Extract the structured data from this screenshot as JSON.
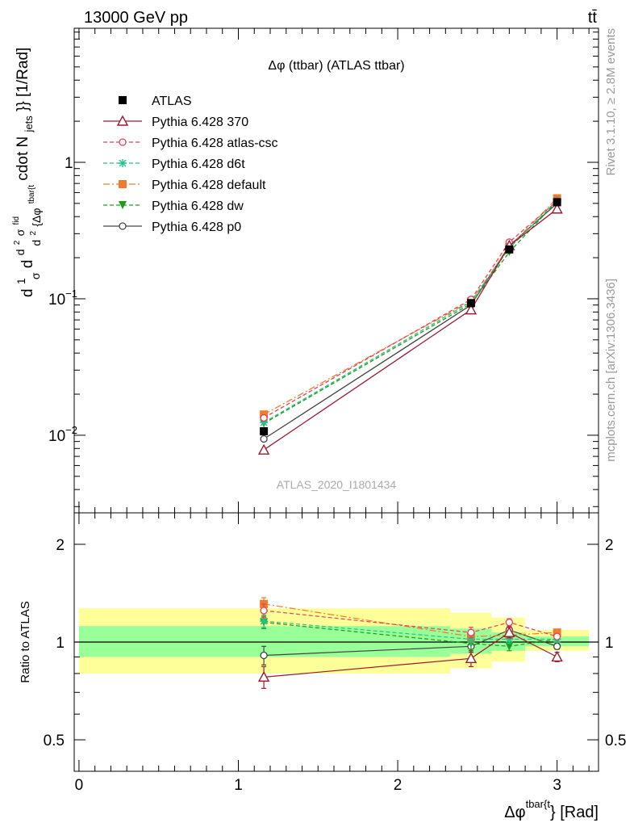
{
  "header": {
    "left": "13000 GeV pp",
    "right": "tt̄"
  },
  "side_text": {
    "rivet": "Rivet 3.1.10, ≥ 2.8M events",
    "mcplots": "mcplots.cern.ch [arXiv:1306.3436]"
  },
  "watermark": "ATLAS_2020_I1801434",
  "colors": {
    "ATLAS": "#000000",
    "p370": "#9b1b30",
    "atlascsc": "#e8405a",
    "d6t": "#22c488",
    "default": "#f07b2b",
    "dw": "#1a9e1a",
    "p0": "#444444",
    "band_yellow": "#ffff99",
    "band_green": "#99ff99"
  },
  "chart_data": [
    {
      "type": "line",
      "title": "Δφ (ttbar) (ATLAS ttbar)",
      "ylabel": "d1/σ d d²σ^fid / d² {Δφ^tbar{t}} cdot N_jets}} [1/Rad]",
      "ylabel_parts": {
        "prefix_d": "d",
        "num1": "1",
        "den1": "σ",
        "mid_d": "d",
        "num2_base": "d",
        "num2_sup1": "2",
        "num2_sigma": "σ",
        "num2_sup2": "fid",
        "den2_base": "d",
        "den2_sup": "2",
        "den2_body": "{Δφ",
        "den2_sup3": "tbar{t",
        "tail_a": "cdot N",
        "tail_sub": "jets",
        "tail_b": "}} [1/Rad]"
      },
      "xlim": [
        -0.03,
        3.26
      ],
      "ylim": [
        0.0027,
        9.6
      ],
      "log_y": true,
      "y_ticks": [
        {
          "value": 0.01,
          "base": "10",
          "exp": "−2"
        },
        {
          "value": 0.1,
          "base": "10",
          "exp": "−1"
        },
        {
          "value": 1,
          "base": "1",
          "exp": ""
        }
      ],
      "x": [
        1.16,
        2.46,
        2.7,
        3.0
      ],
      "series": [
        {
          "key": "ATLAS",
          "name": "ATLAS",
          "marker": "square-filled",
          "line": "none",
          "values": [
            0.0107,
            0.093,
            0.23,
            0.51
          ]
        },
        {
          "key": "p370",
          "name": "Pythia 6.428 370",
          "marker": "triangle-open",
          "line": "solid",
          "values": [
            0.0078,
            0.083,
            0.245,
            0.455
          ]
        },
        {
          "key": "atlascsc",
          "name": "Pythia 6.428 atlas-csc",
          "marker": "circle-open",
          "line": "dashed",
          "values": [
            0.0134,
            0.099,
            0.26,
            0.52
          ]
        },
        {
          "key": "d6t",
          "name": "Pythia 6.428 d6t",
          "marker": "star",
          "line": "dashed",
          "values": [
            0.0124,
            0.095,
            0.235,
            0.525
          ]
        },
        {
          "key": "default",
          "name": "Pythia 6.428 default",
          "marker": "square-filled",
          "line": "dashdot",
          "values": [
            0.0142,
            0.096,
            0.24,
            0.545
          ]
        },
        {
          "key": "dw",
          "name": "Pythia 6.428 dw",
          "marker": "triangle-down-filled",
          "line": "dashed",
          "values": [
            0.0122,
            0.092,
            0.22,
            0.52
          ]
        },
        {
          "key": "p0",
          "name": "Pythia 6.428 p0",
          "marker": "circle-open",
          "line": "solid",
          "values": [
            0.0094,
            0.09,
            0.245,
            0.5
          ]
        }
      ]
    },
    {
      "type": "line",
      "ylabel": "Ratio to ATLAS",
      "xlabel_main": "Δφ",
      "xlabel_sup": "tbar{t",
      "xlabel_tail": "} [Rad]",
      "xlim": [
        -0.03,
        3.26
      ],
      "ylim": [
        0.4,
        2.5
      ],
      "log_y": true,
      "y_ticks": [
        0.5,
        1,
        2
      ],
      "x_ticks": [
        0,
        1,
        2,
        3
      ],
      "bins": [
        {
          "lo": 0,
          "hi": 2.33,
          "yellow": [
            0.8,
            1.27
          ],
          "green": [
            0.9,
            1.12
          ]
        },
        {
          "lo": 2.33,
          "hi": 2.59,
          "yellow": [
            0.83,
            1.23
          ],
          "green": [
            0.92,
            1.1
          ]
        },
        {
          "lo": 2.59,
          "hi": 2.8,
          "yellow": [
            0.87,
            1.19
          ],
          "green": [
            0.94,
            1.07
          ]
        },
        {
          "lo": 2.8,
          "hi": 3.2,
          "yellow": [
            0.94,
            1.09
          ],
          "green": [
            0.97,
            1.04
          ]
        }
      ],
      "x": [
        1.16,
        2.46,
        2.7,
        3.0
      ],
      "series": [
        {
          "key": "p370",
          "values": [
            0.78,
            0.89,
            1.07,
            0.9
          ],
          "err": [
            0.06,
            0.05,
            0.04,
            0.03
          ]
        },
        {
          "key": "atlascsc",
          "values": [
            1.25,
            1.07,
            1.15,
            1.04
          ],
          "err": [
            0.06,
            0.04,
            0.03,
            0.02
          ]
        },
        {
          "key": "d6t",
          "values": [
            1.16,
            1.02,
            1.02,
            1.02
          ],
          "err": [
            0.05,
            0.04,
            0.03,
            0.02
          ]
        },
        {
          "key": "default",
          "values": [
            1.31,
            1.04,
            1.05,
            1.07
          ],
          "err": [
            0.06,
            0.04,
            0.03,
            0.02
          ]
        },
        {
          "key": "dw",
          "values": [
            1.15,
            0.99,
            0.97,
            1.02
          ],
          "err": [
            0.05,
            0.04,
            0.03,
            0.02
          ]
        },
        {
          "key": "p0",
          "values": [
            0.91,
            0.97,
            1.09,
            0.97
          ],
          "err": [
            0.06,
            0.04,
            0.03,
            0.02
          ]
        }
      ]
    }
  ]
}
